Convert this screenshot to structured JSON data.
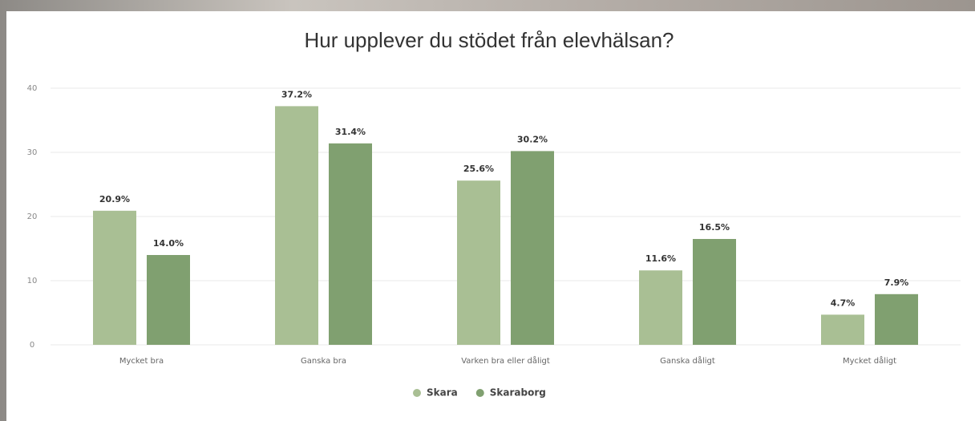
{
  "chart_data": {
    "type": "bar",
    "title": "Hur upplever du stödet från elevhälsan?",
    "categories": [
      "Mycket bra",
      "Ganska bra",
      "Varken bra eller dåligt",
      "Ganska dåligt",
      "Mycket dåligt"
    ],
    "series": [
      {
        "name": "Skara",
        "color": "#a9bf94",
        "values": [
          20.9,
          37.2,
          25.6,
          11.6,
          4.7
        ],
        "value_labels": [
          "20.9%",
          "37.2%",
          "25.6%",
          "11.6%",
          "4.7%"
        ]
      },
      {
        "name": "Skaraborg",
        "color": "#80a070",
        "values": [
          14.0,
          31.4,
          30.2,
          16.5,
          7.9
        ],
        "value_labels": [
          "14.0%",
          "31.4%",
          "30.2%",
          "16.5%",
          "7.9%"
        ]
      }
    ],
    "ylim": [
      0,
      40
    ],
    "yticks": [
      0,
      10,
      20,
      30,
      40
    ],
    "grid": true
  }
}
